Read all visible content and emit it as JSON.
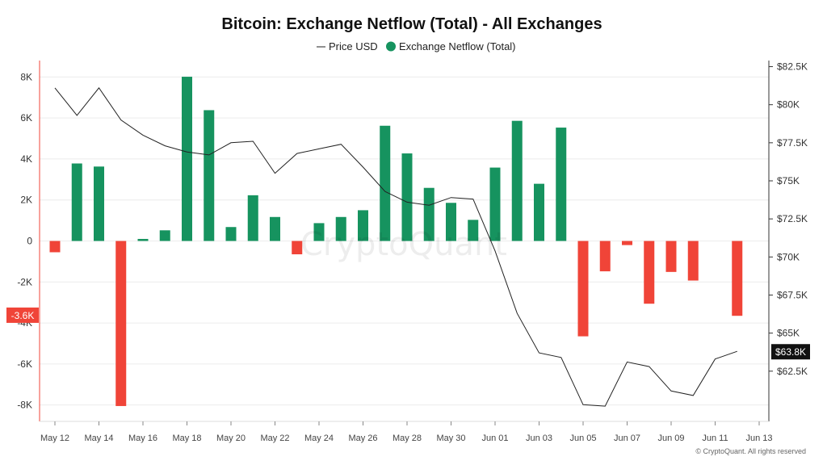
{
  "chart_data": {
    "type": "bar",
    "title": "Bitcoin: Exchange Netflow (Total) - All Exchanges",
    "legend": {
      "placement": "top-center",
      "entries": [
        {
          "label": "Price USD",
          "marker": "line",
          "color": "#222222"
        },
        {
          "label": "Exchange Netflow (Total)",
          "marker": "dot",
          "color": "#16935f"
        }
      ]
    },
    "x_ticks": [
      "May 12",
      "May 14",
      "May 16",
      "May 18",
      "May 20",
      "May 22",
      "May 24",
      "May 26",
      "May 28",
      "May 30",
      "Jun 01",
      "Jun 03",
      "Jun 05",
      "Jun 07",
      "Jun 09",
      "Jun 11",
      "Jun 13"
    ],
    "netflow": {
      "name": "Exchange Netflow (Total)",
      "positive_color": "#16935f",
      "negative_color": "#f04438",
      "dates": [
        "May 12",
        "May 13",
        "May 14",
        "May 15",
        "May 16",
        "May 17",
        "May 18",
        "May 19",
        "May 20",
        "May 21",
        "May 22",
        "May 23",
        "May 24",
        "May 25",
        "May 26",
        "May 27",
        "May 28",
        "May 29",
        "May 30",
        "May 31",
        "Jun 01",
        "Jun 02",
        "Jun 03",
        "Jun 04",
        "Jun 05",
        "Jun 06",
        "Jun 07",
        "Jun 08",
        "Jun 09",
        "Jun 10",
        "Jun 11",
        "Jun 12"
      ],
      "values": [
        -550,
        3780,
        3630,
        -8050,
        100,
        520,
        8010,
        6380,
        680,
        2230,
        1170,
        -650,
        870,
        1170,
        1500,
        5620,
        4270,
        2590,
        1860,
        1030,
        3580,
        5860,
        2790,
        5530,
        -4650,
        -1480,
        -200,
        -3060,
        -1510,
        -1930,
        null,
        -3650
      ],
      "y_ticks": [
        8000,
        6000,
        4000,
        2000,
        0,
        -2000,
        -4000,
        -6000,
        -8000
      ],
      "y_tick_labels": [
        "8K",
        "6K",
        "4K",
        "2K",
        "0",
        "-2K",
        "-4K",
        "-6K",
        "-8K"
      ],
      "ylim": [
        -8800,
        8800
      ],
      "current_label": "-3.6K",
      "current_value": -3600
    },
    "price": {
      "name": "Price USD",
      "color": "#222222",
      "dates": [
        "May 12",
        "May 13",
        "May 14",
        "May 15",
        "May 16",
        "May 17",
        "May 18",
        "May 19",
        "May 20",
        "May 21",
        "May 22",
        "May 23",
        "May 24",
        "May 25",
        "May 26",
        "May 27",
        "May 28",
        "May 29",
        "May 30",
        "May 31",
        "Jun 01",
        "Jun 02",
        "Jun 03",
        "Jun 04",
        "Jun 05",
        "Jun 06",
        "Jun 07",
        "Jun 08",
        "Jun 09",
        "Jun 10",
        "Jun 11",
        "Jun 12"
      ],
      "values": [
        81100,
        79300,
        81100,
        79000,
        78000,
        77300,
        76900,
        76700,
        77500,
        77600,
        75500,
        76800,
        77100,
        77400,
        75900,
        74300,
        73600,
        73400,
        73900,
        73800,
        70400,
        66300,
        63700,
        63400,
        60300,
        60200,
        63100,
        62800,
        61200,
        60900,
        63300,
        63800
      ],
      "y_ticks": [
        82500,
        80000,
        77500,
        75000,
        72500,
        70000,
        67500,
        65000,
        62500
      ],
      "y_tick_labels": [
        "$82.5K",
        "$80K",
        "$77.5K",
        "$75K",
        "$72.5K",
        "$70K",
        "$67.5K",
        "$65K",
        "$62.5K"
      ],
      "ylim": [
        59200,
        82900
      ],
      "current_label": "$63.8K",
      "current_value": 63800
    },
    "grid": true,
    "watermark": "CryptoQuant",
    "credit": "© CryptoQuant. All rights reserved"
  }
}
